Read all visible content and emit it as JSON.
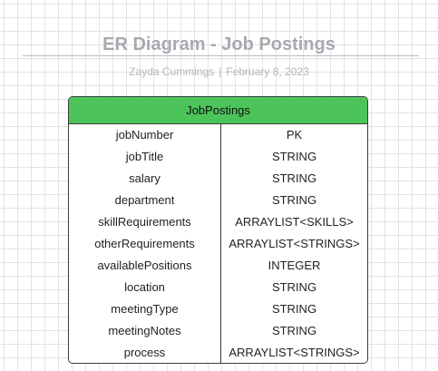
{
  "diagram": {
    "title": "ER Diagram - Job Postings",
    "author": "Zayda Cummings",
    "separator": "|",
    "date": "February 8, 2023"
  },
  "entity": {
    "name": "JobPostings",
    "header_color": "#4cc45a",
    "fields": [
      {
        "name": "jobNumber",
        "type": "PK"
      },
      {
        "name": "jobTitle",
        "type": "STRING"
      },
      {
        "name": "salary",
        "type": "STRING"
      },
      {
        "name": "department",
        "type": "STRING"
      },
      {
        "name": "skillRequirements",
        "type": "ARRAYLIST<SKILLS>"
      },
      {
        "name": "otherRequirements",
        "type": "ARRAYLIST<STRINGS>"
      },
      {
        "name": "availablePositions",
        "type": "INTEGER"
      },
      {
        "name": "location",
        "type": "STRING"
      },
      {
        "name": "meetingType",
        "type": "STRING"
      },
      {
        "name": "meetingNotes",
        "type": "STRING"
      },
      {
        "name": "process",
        "type": "ARRAYLIST<STRINGS>"
      }
    ]
  }
}
